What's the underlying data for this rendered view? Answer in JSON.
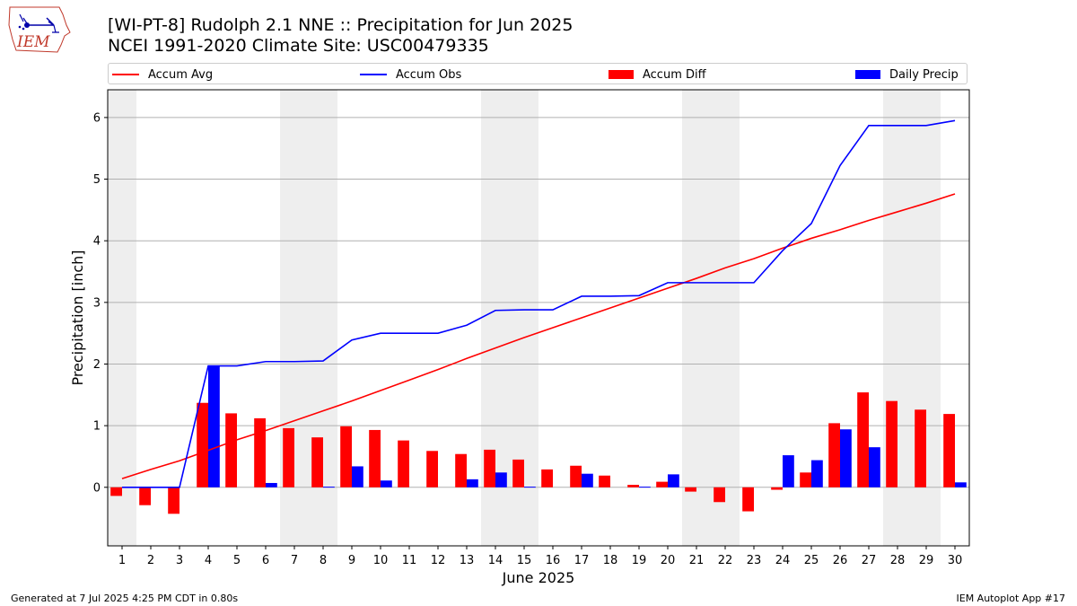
{
  "header": {
    "title_line1": "[WI-PT-8] Rudolph 2.1 NNE :: Precipitation for Jun 2025",
    "title_line2": "NCEI 1991-2020 Climate Site: USC00479335"
  },
  "logo": {
    "text": "IEM"
  },
  "legend": {
    "items": [
      {
        "label": "Accum Avg",
        "kind": "line",
        "color": "#ff0000"
      },
      {
        "label": "Accum Obs",
        "kind": "line",
        "color": "#0000ff"
      },
      {
        "label": "Accum Diff",
        "kind": "bar",
        "color": "#ff0000"
      },
      {
        "label": "Daily Precip",
        "kind": "bar",
        "color": "#0000ff"
      }
    ],
    "placement": "top"
  },
  "footer": {
    "left": "Generated at 7 Jul 2025 4:25 PM CDT in 0.80s",
    "right": "IEM Autoplot App #17"
  },
  "chart_data": {
    "type": "bar",
    "title": "[WI-PT-8] Rudolph 2.1 NNE :: Precipitation for Jun 2025",
    "subtitle": "NCEI 1991-2020 Climate Site: USC00479335",
    "xlabel": "June 2025",
    "ylabel": "Precipitation [inch]",
    "x": [
      1,
      2,
      3,
      4,
      5,
      6,
      7,
      8,
      9,
      10,
      11,
      12,
      13,
      14,
      15,
      16,
      17,
      18,
      19,
      20,
      21,
      22,
      23,
      24,
      25,
      26,
      27,
      28,
      29,
      30
    ],
    "ylim": [
      -0.95,
      6.45
    ],
    "yticks": [
      0,
      1,
      2,
      3,
      4,
      5,
      6
    ],
    "grid": true,
    "weekend_days": [
      1,
      7,
      8,
      14,
      15,
      21,
      22,
      28,
      29
    ],
    "series": [
      {
        "name": "Accum Avg",
        "type": "line",
        "color": "#ff0000",
        "values": [
          0.14,
          0.29,
          0.43,
          0.6,
          0.77,
          0.92,
          1.08,
          1.24,
          1.4,
          1.57,
          1.74,
          1.91,
          2.09,
          2.26,
          2.43,
          2.59,
          2.75,
          2.91,
          3.07,
          3.23,
          3.39,
          3.56,
          3.71,
          3.88,
          4.04,
          4.18,
          4.33,
          4.47,
          4.61,
          4.76
        ]
      },
      {
        "name": "Accum Obs",
        "type": "line",
        "color": "#0000ff",
        "values": [
          0,
          0,
          0,
          1.97,
          1.97,
          2.04,
          2.04,
          2.05,
          2.39,
          2.5,
          2.5,
          2.5,
          2.63,
          2.87,
          2.88,
          2.88,
          3.1,
          3.1,
          3.11,
          3.32,
          3.32,
          3.32,
          3.32,
          3.84,
          4.28,
          5.22,
          5.87,
          5.87,
          5.87,
          5.95
        ]
      },
      {
        "name": "Accum Diff",
        "type": "bar",
        "color": "#ff0000",
        "values": [
          -0.14,
          -0.29,
          -0.43,
          1.37,
          1.2,
          1.12,
          0.96,
          0.81,
          0.99,
          0.93,
          0.76,
          0.59,
          0.54,
          0.61,
          0.45,
          0.29,
          0.35,
          0.19,
          0.04,
          0.09,
          -0.07,
          -0.24,
          -0.39,
          -0.04,
          0.24,
          1.04,
          1.54,
          1.4,
          1.26,
          1.19
        ]
      },
      {
        "name": "Daily Precip",
        "type": "bar",
        "color": "#0000ff",
        "values": [
          0,
          0,
          0,
          1.97,
          0,
          0.07,
          0,
          0.01,
          0.34,
          0.11,
          0,
          0,
          0.13,
          0.24,
          0.01,
          0,
          0.22,
          0,
          0.01,
          0.21,
          0,
          0,
          0,
          0.52,
          0.44,
          0.94,
          0.65,
          0,
          0,
          0.08
        ]
      }
    ]
  }
}
